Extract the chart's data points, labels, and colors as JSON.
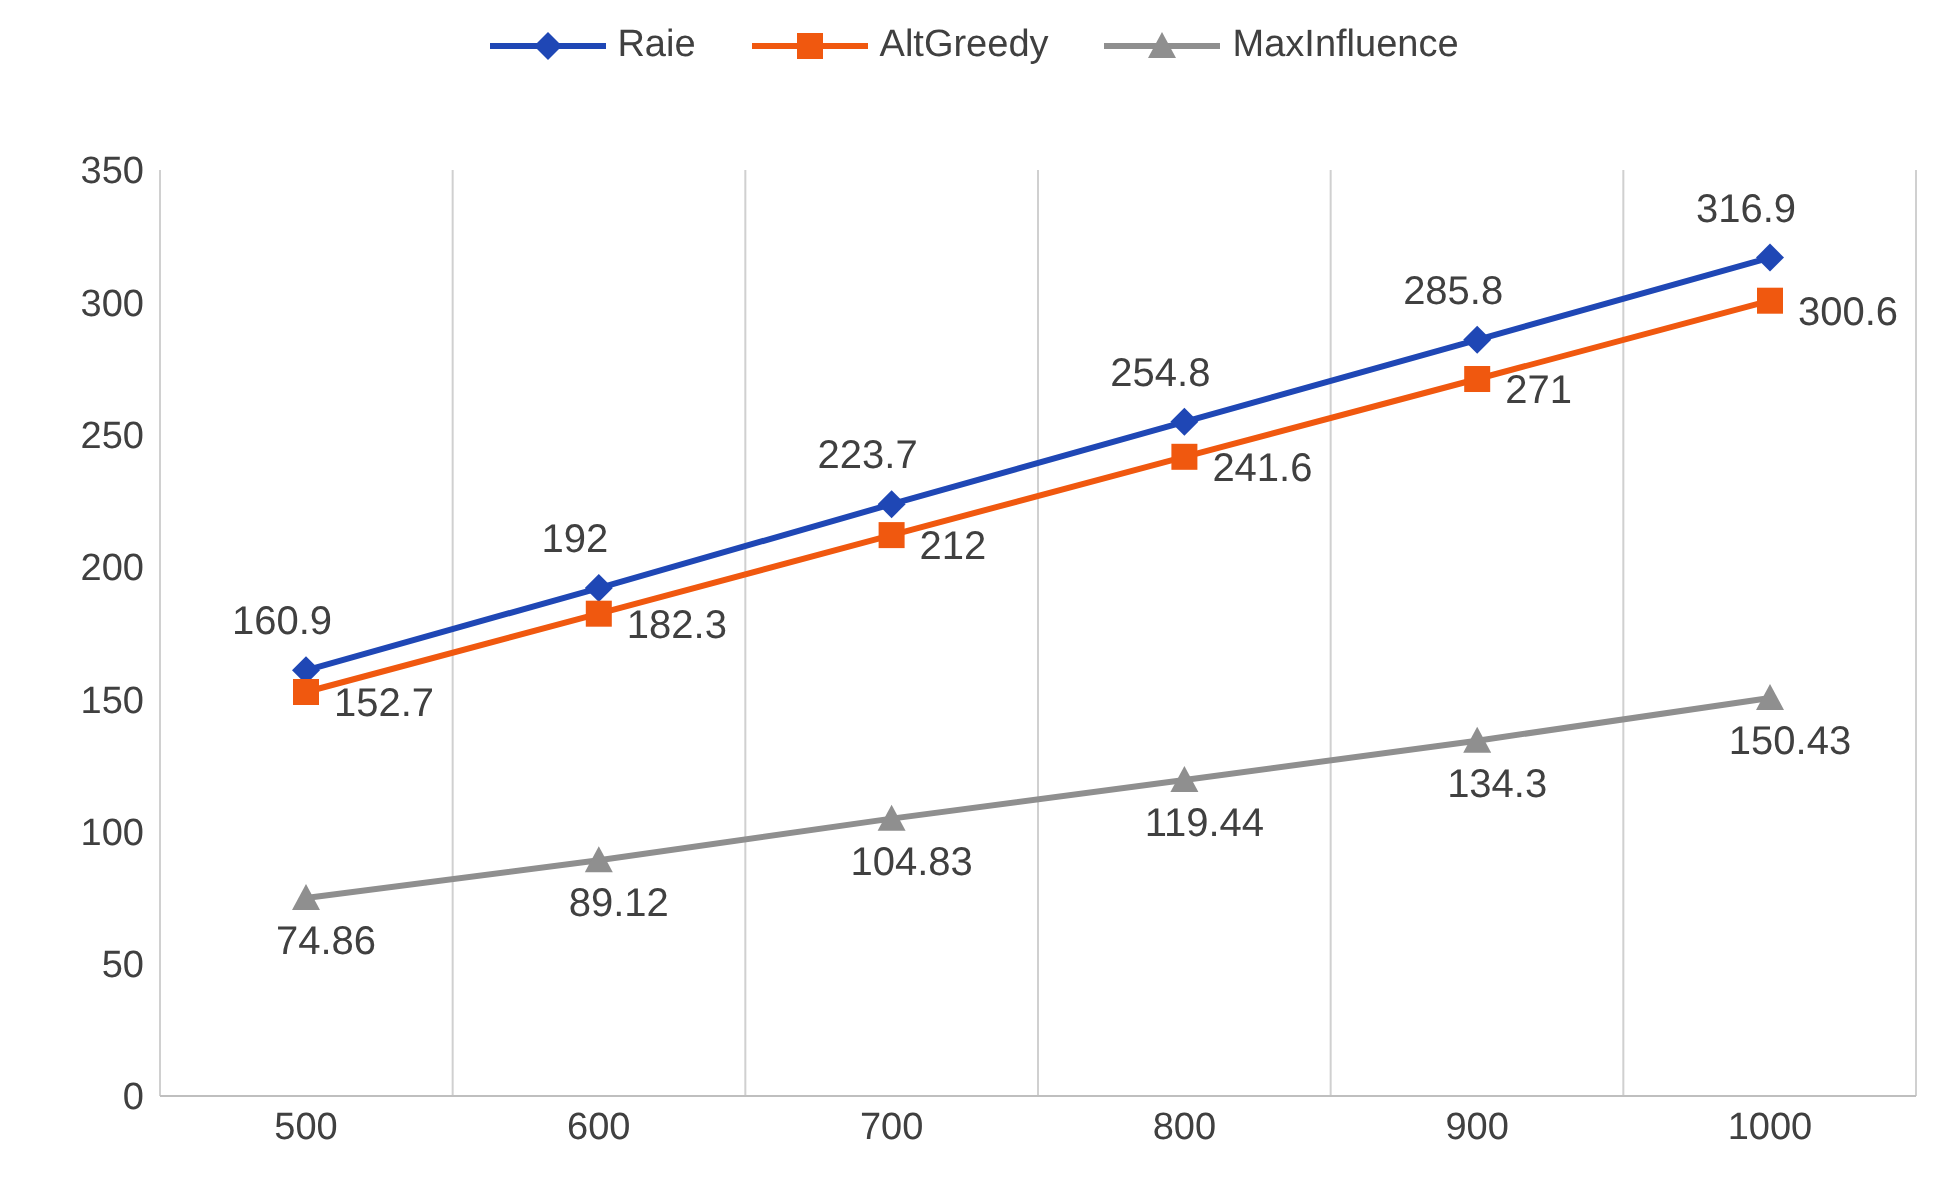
{
  "chart_data": {
    "type": "line",
    "categories": [
      "500",
      "600",
      "700",
      "800",
      "900",
      "1000"
    ],
    "series": [
      {
        "name": "Raie",
        "color": "#1f47b5",
        "marker": "diamond",
        "values": [
          160.9,
          192,
          223.7,
          254.8,
          285.8,
          316.9
        ]
      },
      {
        "name": "AltGreedy",
        "color": "#f0580f",
        "marker": "square",
        "values": [
          152.7,
          182.3,
          212,
          241.6,
          271,
          300.6
        ]
      },
      {
        "name": "MaxInfluence",
        "color": "#8f8f8f",
        "marker": "triangle",
        "values": [
          74.86,
          89.12,
          104.83,
          119.44,
          134.3,
          150.43
        ]
      }
    ],
    "ylim": [
      0,
      350
    ],
    "yticks": [
      0,
      50,
      100,
      150,
      200,
      250,
      300,
      350
    ],
    "grid": "x",
    "legend": "top",
    "data_labels": true
  }
}
